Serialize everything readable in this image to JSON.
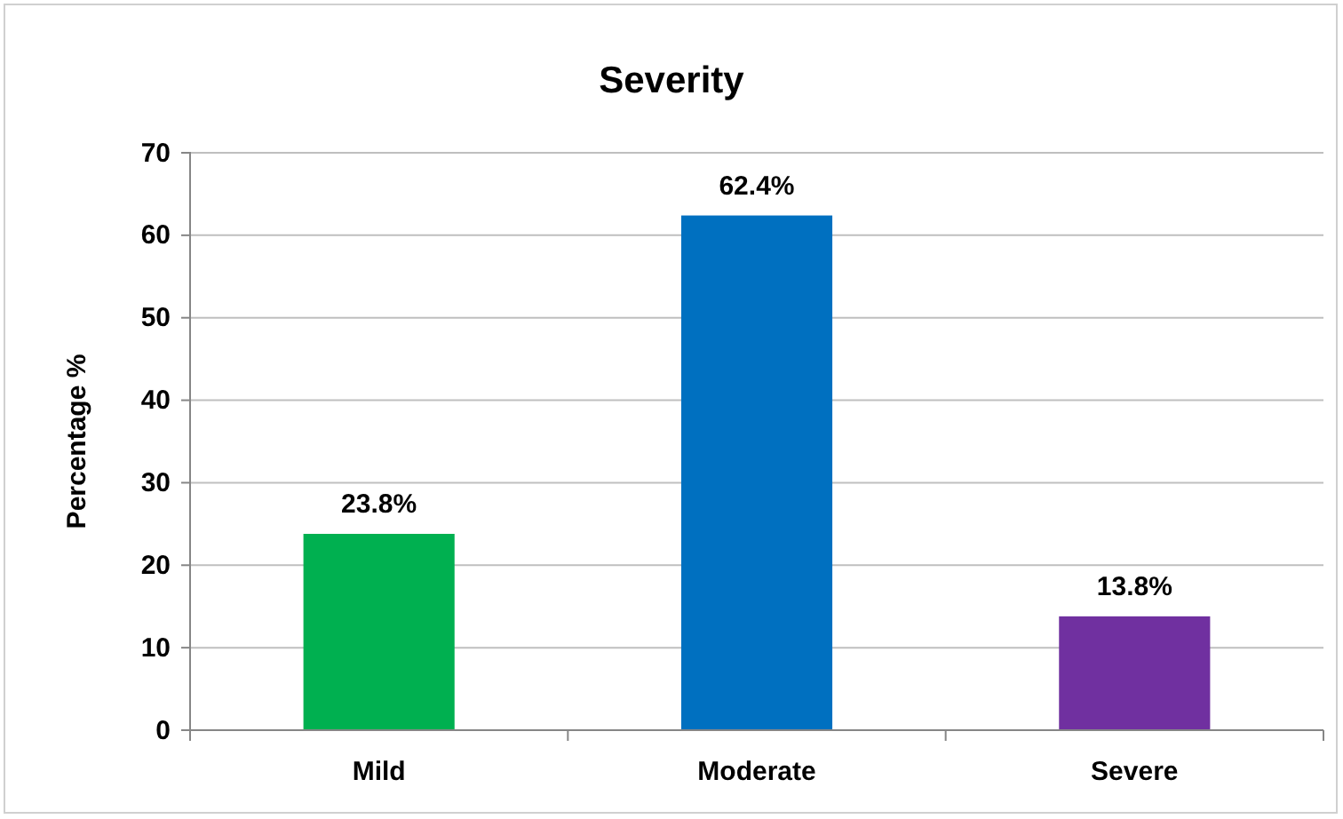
{
  "chart_data": {
    "type": "bar",
    "title": "Severity",
    "ylabel": "Percentage %",
    "categories": [
      "Mild",
      "Moderate",
      "Severe"
    ],
    "values": [
      23.8,
      62.4,
      13.8
    ],
    "colors": [
      "#00b050",
      "#0070c0",
      "#7030a0"
    ],
    "value_labels": [
      "23.8%",
      "62.4%",
      "13.8%"
    ],
    "ylim": [
      0,
      70
    ],
    "yticks": [
      0,
      10,
      20,
      30,
      40,
      50,
      60,
      70
    ],
    "grid": "y"
  }
}
